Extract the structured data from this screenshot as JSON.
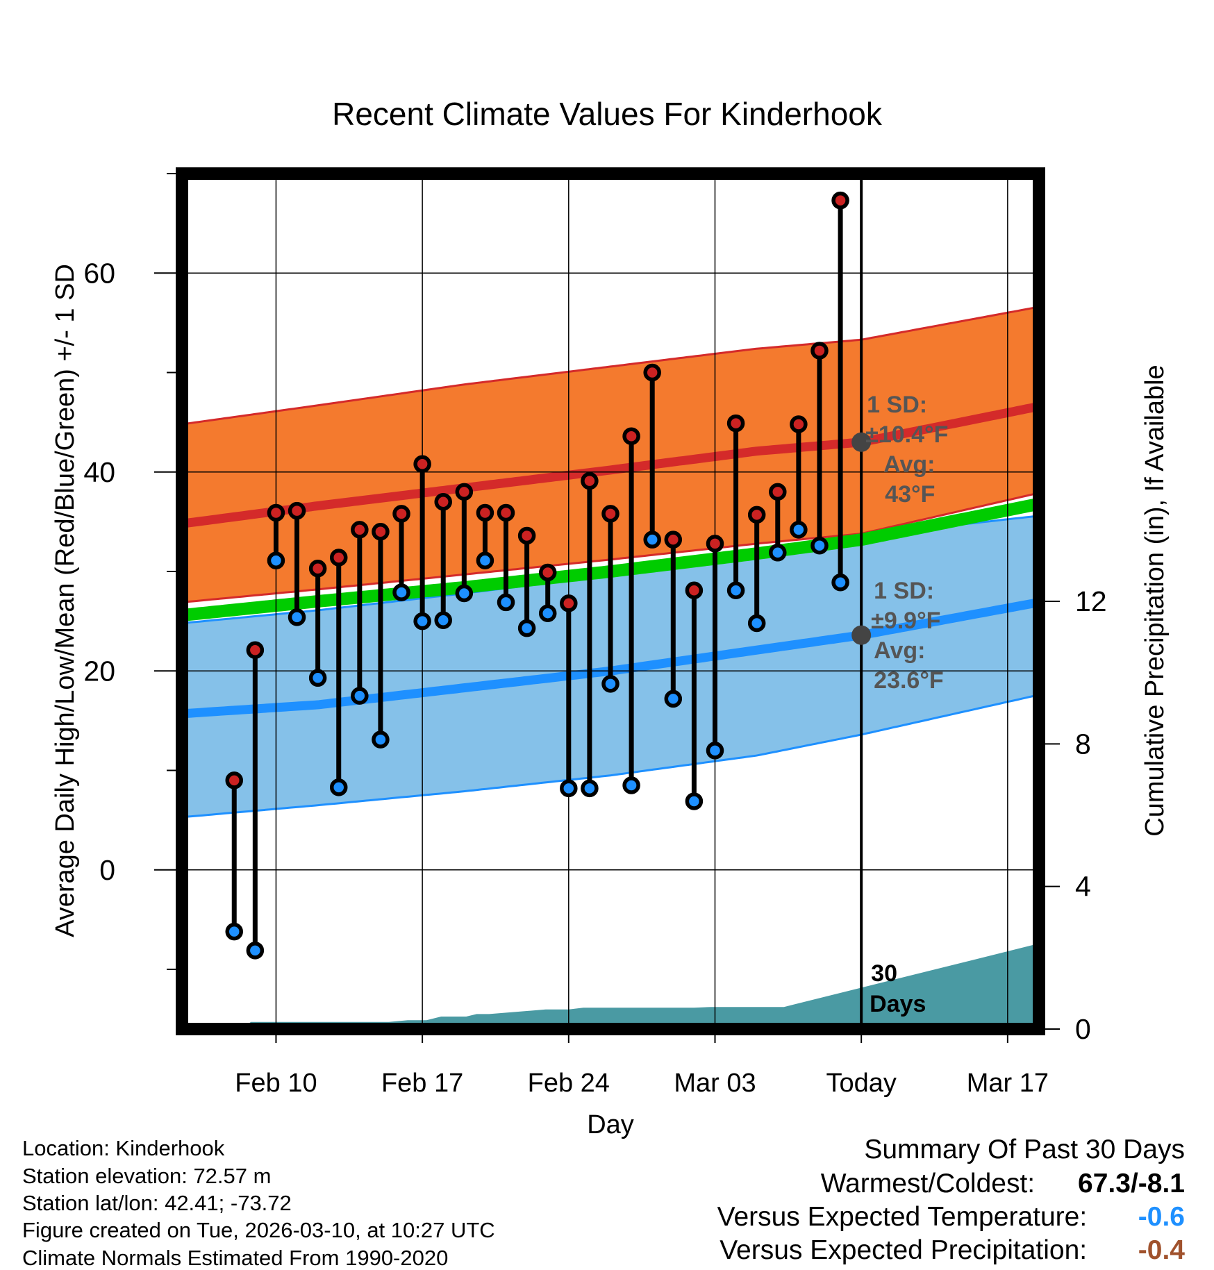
{
  "chart_data": {
    "type": "line",
    "title": "Recent Climate Values For Kinderhook",
    "xlabel": "Day",
    "ylabel": "Average Daily High/Low/Mean (Red/Blue/Green) +/- 1 SD",
    "y2label": "Cumulative Precipitation (in), If Available",
    "xlim": [
      -1.5,
      39.5
    ],
    "ylim": [
      -16,
      70
    ],
    "y2lim": [
      0,
      24
    ],
    "x_ticks": [
      {
        "x": 3,
        "label": "Feb 10"
      },
      {
        "x": 10,
        "label": "Feb 17"
      },
      {
        "x": 17,
        "label": "Feb 24"
      },
      {
        "x": 24,
        "label": "Mar 03"
      },
      {
        "x": 31,
        "label": "Today"
      },
      {
        "x": 38,
        "label": "Mar 17"
      }
    ],
    "y_ticks": [
      0,
      20,
      40,
      60
    ],
    "y2_ticks": [
      0,
      4,
      8,
      12
    ],
    "today_x": 31,
    "days": [
      1,
      2,
      3,
      4,
      5,
      6,
      7,
      8,
      9,
      10,
      11,
      12,
      13,
      14,
      15,
      16,
      17,
      18,
      19,
      20,
      21,
      22,
      23,
      24,
      25,
      26,
      27,
      28,
      29,
      30
    ],
    "highs": [
      9.0,
      22.1,
      35.9,
      36.1,
      30.3,
      31.4,
      34.2,
      34.0,
      35.8,
      40.8,
      37.0,
      38.0,
      35.9,
      35.9,
      33.6,
      29.9,
      26.8,
      39.1,
      35.8,
      43.6,
      50.0,
      33.2,
      28.1,
      32.8,
      44.9,
      35.7,
      38.0,
      44.8,
      52.2,
      67.3
    ],
    "lows": [
      -6.2,
      -8.1,
      31.1,
      25.4,
      19.3,
      8.3,
      17.5,
      13.1,
      27.9,
      25.0,
      25.1,
      27.8,
      31.1,
      26.9,
      24.3,
      25.8,
      8.2,
      8.2,
      18.7,
      8.5,
      33.2,
      17.2,
      6.9,
      12.0,
      28.1,
      24.8,
      31.9,
      34.2,
      32.6,
      28.9
    ],
    "normals": {
      "x": [
        -1.5,
        5,
        12,
        19,
        26,
        31,
        39.5
      ],
      "mean_high": [
        34.8,
        36.6,
        38.4,
        40.2,
        42.1,
        43.0,
        46.6
      ],
      "high_upper": [
        44.8,
        46.7,
        48.8,
        50.6,
        52.4,
        53.3,
        56.6
      ],
      "high_lower": [
        26.9,
        28.2,
        29.7,
        31.2,
        32.8,
        33.8,
        37.9
      ],
      "mean": [
        25.6,
        27.0,
        28.4,
        30.0,
        31.8,
        33.2,
        36.8
      ],
      "mean_low": [
        15.7,
        16.6,
        18.3,
        20.0,
        22.1,
        23.6,
        26.9
      ],
      "low_upper": [
        24.8,
        26.1,
        27.8,
        29.6,
        31.6,
        33.6,
        35.6
      ],
      "low_lower": [
        5.3,
        6.5,
        7.9,
        9.5,
        11.5,
        13.6,
        17.6
      ]
    },
    "precip_x": [
      -1.5,
      1.3,
      1.8,
      8.4,
      9.3,
      10.2,
      10.9,
      12.1,
      12.6,
      13.2,
      15.9,
      16.2,
      17.0,
      17.7,
      18.4,
      19.3,
      20.2,
      21.0,
      22.3,
      23.0,
      23.8,
      24.4,
      25.1,
      25.8,
      26.4,
      27.3,
      39.5
    ],
    "precip_cum": [
      0.0,
      0.0,
      0.2,
      0.2,
      0.25,
      0.25,
      0.35,
      0.35,
      0.42,
      0.42,
      0.55,
      0.55,
      0.55,
      0.6,
      0.6,
      0.6,
      0.6,
      0.6,
      0.6,
      0.6,
      0.62,
      0.62,
      0.62,
      0.62,
      0.62,
      0.62,
      2.4
    ],
    "annotations": {
      "high_sd_line1": "1 SD:",
      "high_sd_line2": "±10.4°F",
      "high_avg_line1": "Avg:",
      "high_avg_line2": "43°F",
      "high_avg_value": 43.0,
      "low_sd_line1": "1 SD:",
      "low_sd_line2": "±9.9°F",
      "low_avg_line1": "Avg:",
      "low_avg_line2": "23.6°F",
      "low_avg_value": 23.6,
      "days_line1": "30",
      "days_line2": "Days"
    }
  },
  "colors": {
    "high_band": "#f47a2e",
    "high_line": "#d42a2a",
    "low_band": "#85c1e9",
    "low_line": "#1e90ff",
    "mean_line": "#00cc00",
    "precip_fill": "#4a9aa3",
    "high_dot": "#cc2222",
    "low_dot": "#1e90ff",
    "annotation_text": "#555555",
    "temp_anomaly": "#1e90ff",
    "precip_anomaly": "#a0522d"
  },
  "footer": {
    "location": "Location: Kinderhook",
    "elevation": "Station elevation: 72.57 m",
    "latlon": "Station lat/lon: 42.41; -73.72",
    "created": "Figure created on Tue, 2026-03-10, at 10:27 UTC",
    "normals": "Climate Normals Estimated From 1990-2020"
  },
  "summary": {
    "title": "Summary Of Past 30 Days",
    "warm_cold_label": "Warmest/Coldest:",
    "warm_cold_value": "67.3/-8.1",
    "temp_label": "Versus Expected Temperature:",
    "temp_value": "-0.6",
    "precip_label": "Versus Expected Precipitation:",
    "precip_value": "-0.4"
  }
}
